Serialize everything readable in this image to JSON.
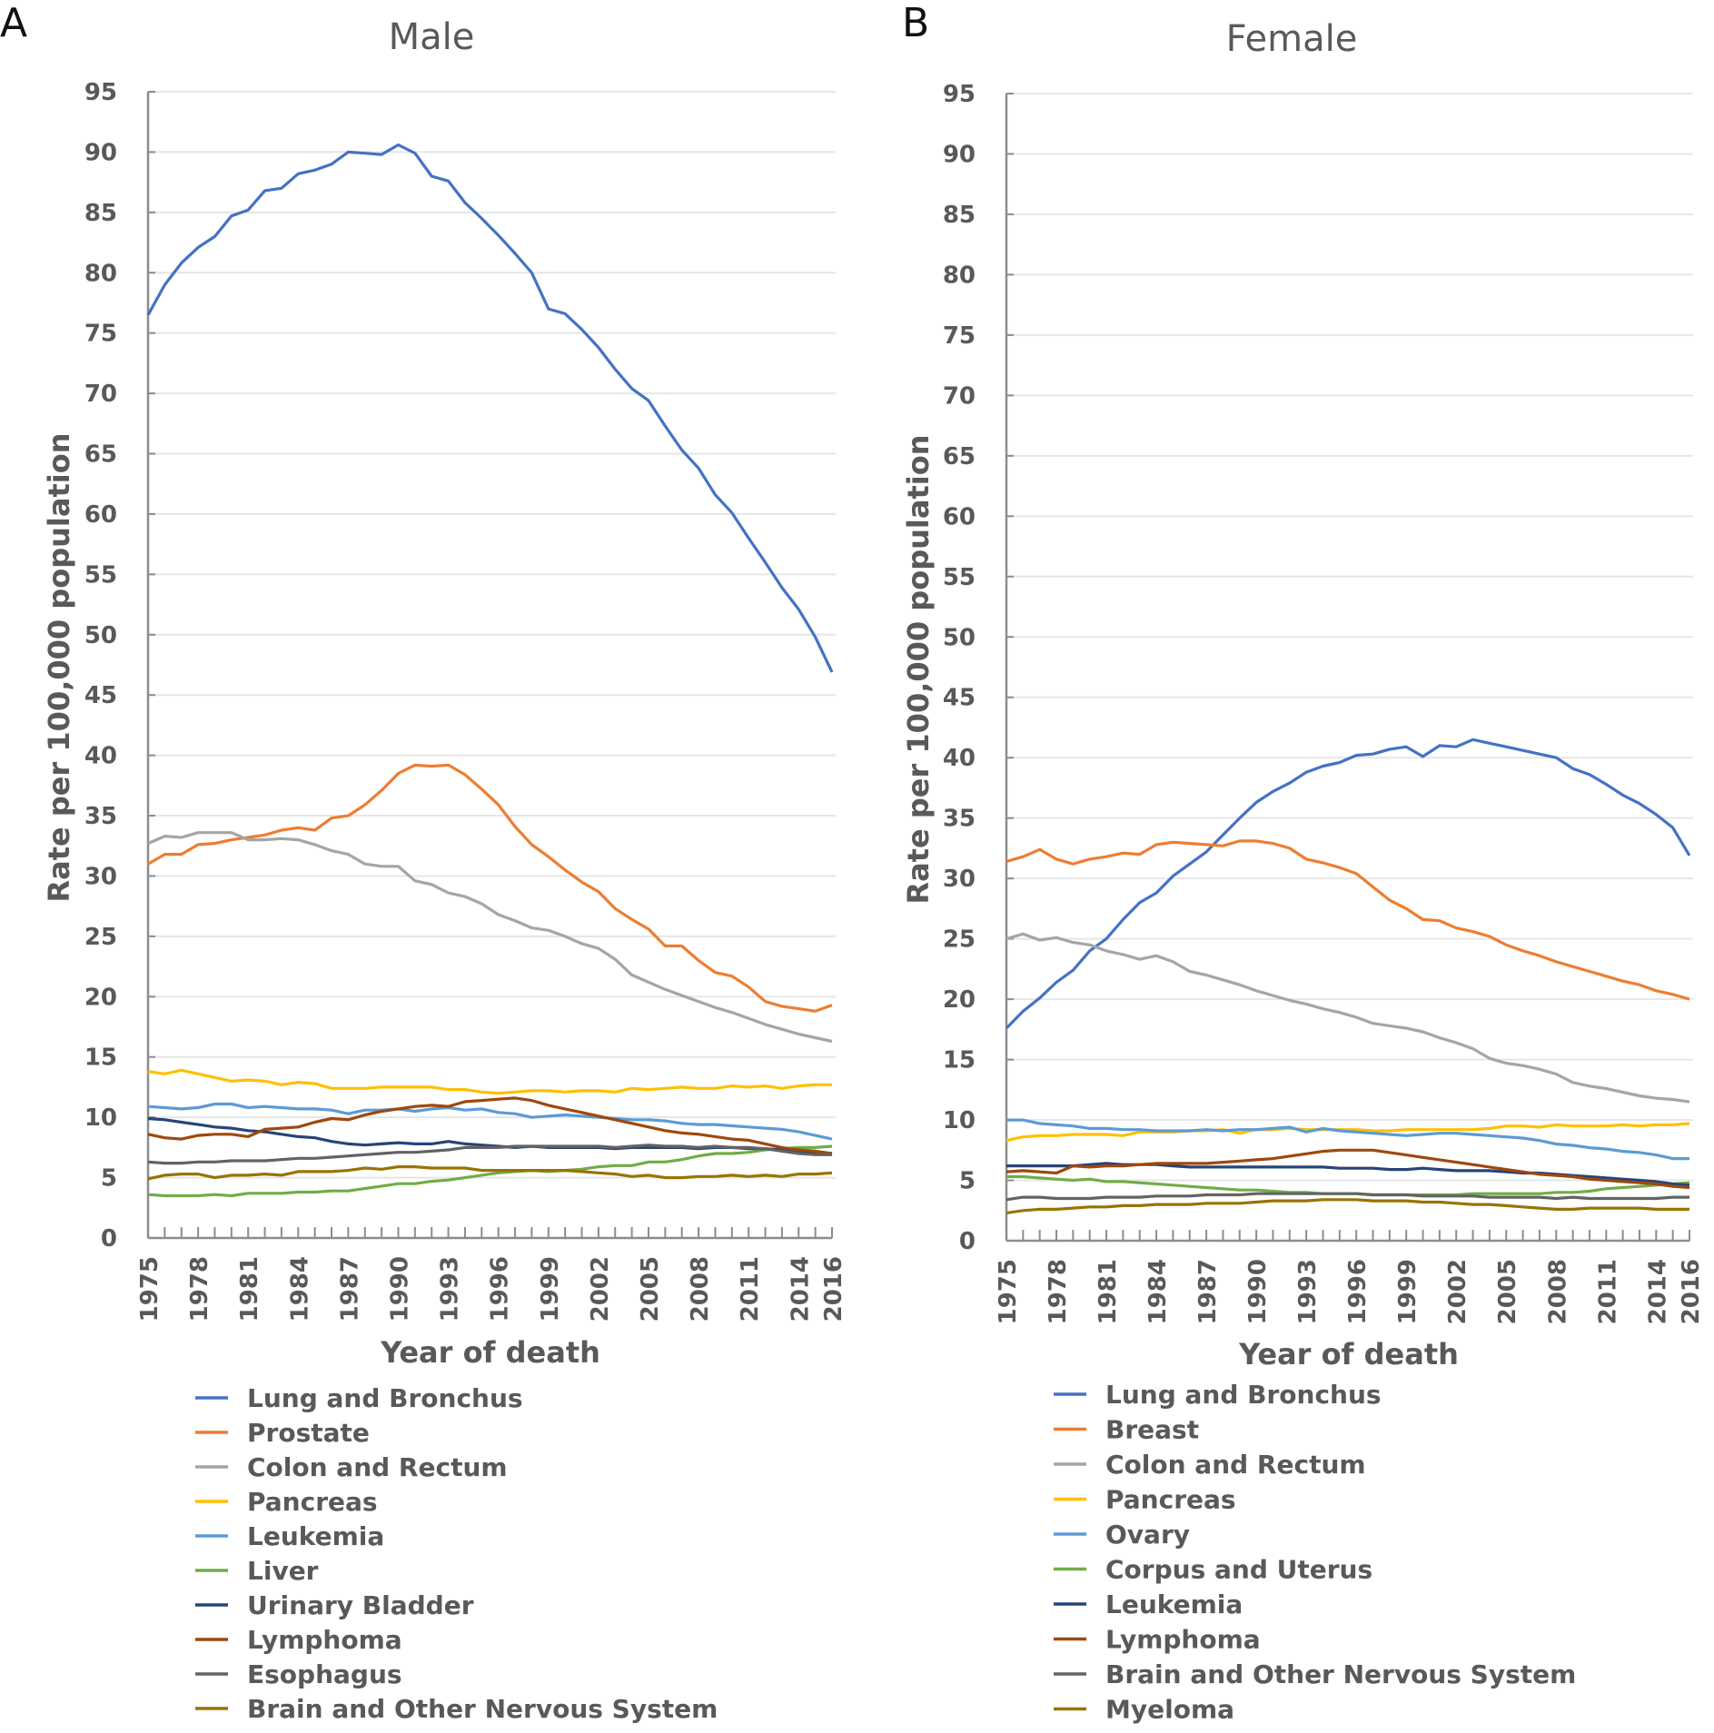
{
  "chart_data": [
    {
      "panel": "A",
      "type": "line",
      "title": "Male",
      "xlabel": "Year of death",
      "ylabel": "Rate per 100,000 population",
      "ylim": [
        0,
        95
      ],
      "yticks": [
        0,
        5,
        10,
        15,
        20,
        25,
        30,
        35,
        40,
        45,
        50,
        55,
        60,
        65,
        70,
        75,
        80,
        85,
        90,
        95
      ],
      "x": [
        1975,
        1976,
        1977,
        1978,
        1979,
        1980,
        1981,
        1982,
        1983,
        1984,
        1985,
        1986,
        1987,
        1988,
        1989,
        1990,
        1991,
        1992,
        1993,
        1994,
        1995,
        1996,
        1997,
        1998,
        1999,
        2000,
        2001,
        2002,
        2003,
        2004,
        2005,
        2006,
        2007,
        2008,
        2009,
        2010,
        2011,
        2012,
        2013,
        2014,
        2015,
        2016
      ],
      "xtick_labels": [
        "1975",
        "1978",
        "1981",
        "1984",
        "1987",
        "1990",
        "1993",
        "1996",
        "1999",
        "2002",
        "2005",
        "2008",
        "2011",
        "2014",
        "2016"
      ],
      "grid": true,
      "legend_position": "bottom",
      "series": [
        {
          "name": "Lung and Bronchus",
          "color": "#4472C4",
          "values": [
            76.5,
            79.0,
            80.8,
            82.1,
            83.0,
            84.7,
            85.2,
            86.8,
            87.0,
            88.2,
            88.5,
            89.0,
            90.0,
            89.9,
            89.8,
            90.6,
            89.9,
            88.0,
            87.6,
            85.8,
            84.5,
            83.1,
            81.6,
            80.0,
            77.0,
            76.6,
            75.3,
            73.8,
            72.0,
            70.4,
            69.4,
            67.3,
            65.3,
            63.8,
            61.6,
            60.1,
            58.0,
            56.0,
            53.9,
            52.1,
            49.8,
            46.9
          ]
        },
        {
          "name": "Prostate",
          "color": "#ED7D31",
          "values": [
            31.0,
            31.8,
            31.8,
            32.6,
            32.7,
            33.0,
            33.2,
            33.4,
            33.8,
            34.0,
            33.8,
            34.8,
            35.0,
            35.9,
            37.1,
            38.5,
            39.2,
            39.1,
            39.2,
            38.4,
            37.2,
            35.9,
            34.1,
            32.6,
            31.6,
            30.5,
            29.5,
            28.7,
            27.3,
            26.4,
            25.6,
            24.2,
            24.2,
            23.0,
            22.0,
            21.7,
            20.8,
            19.6,
            19.2,
            19.0,
            18.8,
            19.3
          ]
        },
        {
          "name": "Colon and Rectum",
          "color": "#A5A5A5",
          "values": [
            32.7,
            33.3,
            33.2,
            33.6,
            33.6,
            33.6,
            33.0,
            33.0,
            33.1,
            33.0,
            32.6,
            32.1,
            31.8,
            31.0,
            30.8,
            30.8,
            29.6,
            29.3,
            28.6,
            28.3,
            27.7,
            26.8,
            26.3,
            25.7,
            25.5,
            25.0,
            24.4,
            24.0,
            23.1,
            21.8,
            21.2,
            20.6,
            20.1,
            19.6,
            19.1,
            18.7,
            18.2,
            17.7,
            17.3,
            16.9,
            16.6,
            16.3
          ]
        },
        {
          "name": "Pancreas",
          "color": "#FFC000",
          "values": [
            13.8,
            13.6,
            13.9,
            13.6,
            13.3,
            13.0,
            13.1,
            13.0,
            12.7,
            12.9,
            12.8,
            12.4,
            12.4,
            12.4,
            12.5,
            12.5,
            12.5,
            12.5,
            12.3,
            12.3,
            12.1,
            12.0,
            12.1,
            12.2,
            12.2,
            12.1,
            12.2,
            12.2,
            12.1,
            12.4,
            12.3,
            12.4,
            12.5,
            12.4,
            12.4,
            12.6,
            12.5,
            12.6,
            12.4,
            12.6,
            12.7,
            12.7
          ]
        },
        {
          "name": "Leukemia",
          "color": "#5B9BD5",
          "values": [
            10.9,
            10.8,
            10.7,
            10.8,
            11.1,
            11.1,
            10.8,
            10.9,
            10.8,
            10.7,
            10.7,
            10.6,
            10.3,
            10.6,
            10.6,
            10.7,
            10.5,
            10.7,
            10.8,
            10.6,
            10.7,
            10.4,
            10.3,
            10.0,
            10.1,
            10.2,
            10.1,
            10.0,
            9.9,
            9.8,
            9.8,
            9.7,
            9.5,
            9.4,
            9.4,
            9.3,
            9.2,
            9.1,
            9.0,
            8.8,
            8.5,
            8.2
          ]
        },
        {
          "name": "Liver",
          "color": "#70AD47",
          "values": [
            3.6,
            3.5,
            3.5,
            3.5,
            3.6,
            3.5,
            3.7,
            3.7,
            3.7,
            3.8,
            3.8,
            3.9,
            3.9,
            4.1,
            4.3,
            4.5,
            4.5,
            4.7,
            4.8,
            5.0,
            5.2,
            5.4,
            5.5,
            5.6,
            5.5,
            5.6,
            5.7,
            5.9,
            6.0,
            6.0,
            6.3,
            6.3,
            6.5,
            6.8,
            7.0,
            7.0,
            7.1,
            7.3,
            7.4,
            7.5,
            7.5,
            7.6
          ]
        },
        {
          "name": "Urinary Bladder",
          "color": "#264478",
          "values": [
            9.9,
            9.8,
            9.6,
            9.4,
            9.2,
            9.1,
            8.9,
            8.8,
            8.6,
            8.4,
            8.3,
            8.0,
            7.8,
            7.7,
            7.8,
            7.9,
            7.8,
            7.8,
            8.0,
            7.8,
            7.7,
            7.6,
            7.5,
            7.6,
            7.5,
            7.5,
            7.5,
            7.5,
            7.4,
            7.5,
            7.5,
            7.5,
            7.5,
            7.4,
            7.5,
            7.5,
            7.4,
            7.4,
            7.3,
            7.2,
            7.1,
            7.0
          ]
        },
        {
          "name": "Lymphoma",
          "color": "#9E480E",
          "values": [
            8.6,
            8.3,
            8.2,
            8.5,
            8.6,
            8.6,
            8.4,
            9.0,
            9.1,
            9.2,
            9.6,
            9.9,
            9.8,
            10.2,
            10.5,
            10.7,
            10.9,
            11.0,
            10.9,
            11.3,
            11.4,
            11.5,
            11.6,
            11.4,
            11.0,
            10.7,
            10.4,
            10.1,
            9.8,
            9.5,
            9.2,
            8.9,
            8.7,
            8.6,
            8.4,
            8.2,
            8.1,
            7.8,
            7.5,
            7.3,
            7.2,
            7.0
          ]
        },
        {
          "name": "Esophagus",
          "color": "#636363",
          "values": [
            6.3,
            6.2,
            6.2,
            6.3,
            6.3,
            6.4,
            6.4,
            6.4,
            6.5,
            6.6,
            6.6,
            6.7,
            6.8,
            6.9,
            7.0,
            7.1,
            7.1,
            7.2,
            7.3,
            7.5,
            7.5,
            7.5,
            7.6,
            7.6,
            7.6,
            7.6,
            7.6,
            7.6,
            7.5,
            7.6,
            7.7,
            7.6,
            7.6,
            7.5,
            7.6,
            7.5,
            7.5,
            7.4,
            7.2,
            7.0,
            6.9,
            6.9
          ]
        },
        {
          "name": "Brain and Other Nervous System",
          "color": "#997300",
          "values": [
            4.9,
            5.2,
            5.3,
            5.3,
            5.0,
            5.2,
            5.2,
            5.3,
            5.2,
            5.5,
            5.5,
            5.5,
            5.6,
            5.8,
            5.7,
            5.9,
            5.9,
            5.8,
            5.8,
            5.8,
            5.6,
            5.6,
            5.6,
            5.6,
            5.6,
            5.6,
            5.5,
            5.4,
            5.3,
            5.1,
            5.2,
            5.0,
            5.0,
            5.1,
            5.1,
            5.2,
            5.1,
            5.2,
            5.1,
            5.3,
            5.3,
            5.4
          ]
        }
      ]
    },
    {
      "panel": "B",
      "type": "line",
      "title": "Female",
      "xlabel": "Year of death",
      "ylabel": "Rate per 100,000 population",
      "ylim": [
        0,
        95
      ],
      "yticks": [
        0,
        5,
        10,
        15,
        20,
        25,
        30,
        35,
        40,
        45,
        50,
        55,
        60,
        65,
        70,
        75,
        80,
        85,
        90,
        95
      ],
      "x": [
        1975,
        1976,
        1977,
        1978,
        1979,
        1980,
        1981,
        1982,
        1983,
        1984,
        1985,
        1986,
        1987,
        1988,
        1989,
        1990,
        1991,
        1992,
        1993,
        1994,
        1995,
        1996,
        1997,
        1998,
        1999,
        2000,
        2001,
        2002,
        2003,
        2004,
        2005,
        2006,
        2007,
        2008,
        2009,
        2010,
        2011,
        2012,
        2013,
        2014,
        2015,
        2016
      ],
      "xtick_labels": [
        "1975",
        "1978",
        "1981",
        "1984",
        "1987",
        "1990",
        "1993",
        "1996",
        "1999",
        "2002",
        "2005",
        "2008",
        "2011",
        "2014",
        "2016"
      ],
      "grid": true,
      "legend_position": "bottom",
      "series": [
        {
          "name": "Lung and Bronchus",
          "color": "#4472C4",
          "values": [
            17.6,
            19.0,
            20.1,
            21.4,
            22.4,
            24.0,
            25.0,
            26.6,
            28.0,
            28.8,
            30.2,
            31.2,
            32.2,
            33.6,
            35.0,
            36.3,
            37.2,
            37.9,
            38.8,
            39.3,
            39.6,
            40.2,
            40.3,
            40.7,
            40.9,
            40.1,
            41.0,
            40.9,
            41.5,
            41.2,
            40.9,
            40.6,
            40.3,
            40.0,
            39.1,
            38.6,
            37.8,
            36.9,
            36.2,
            35.3,
            34.2,
            31.9
          ]
        },
        {
          "name": "Breast",
          "color": "#ED7D31",
          "values": [
            31.4,
            31.8,
            32.4,
            31.6,
            31.2,
            31.6,
            31.8,
            32.1,
            32.0,
            32.8,
            33.0,
            32.9,
            32.8,
            32.7,
            33.1,
            33.1,
            32.9,
            32.5,
            31.6,
            31.3,
            30.9,
            30.4,
            29.3,
            28.2,
            27.5,
            26.6,
            26.5,
            25.9,
            25.6,
            25.2,
            24.5,
            24.0,
            23.6,
            23.1,
            22.7,
            22.3,
            21.9,
            21.5,
            21.2,
            20.7,
            20.4,
            20.0
          ]
        },
        {
          "name": "Colon and Rectum",
          "color": "#A5A5A5",
          "values": [
            25.0,
            25.4,
            24.9,
            25.1,
            24.7,
            24.5,
            24.0,
            23.7,
            23.3,
            23.6,
            23.1,
            22.3,
            22.0,
            21.6,
            21.2,
            20.7,
            20.3,
            19.9,
            19.6,
            19.2,
            18.9,
            18.5,
            18.0,
            17.8,
            17.6,
            17.3,
            16.8,
            16.4,
            15.9,
            15.1,
            14.7,
            14.5,
            14.2,
            13.8,
            13.1,
            12.8,
            12.6,
            12.3,
            12.0,
            11.8,
            11.7,
            11.5
          ]
        },
        {
          "name": "Pancreas",
          "color": "#FFC000",
          "values": [
            8.3,
            8.6,
            8.7,
            8.7,
            8.8,
            8.8,
            8.8,
            8.7,
            9.0,
            9.0,
            9.0,
            9.1,
            9.1,
            9.2,
            8.9,
            9.2,
            9.2,
            9.3,
            9.2,
            9.2,
            9.2,
            9.2,
            9.1,
            9.1,
            9.2,
            9.2,
            9.2,
            9.2,
            9.2,
            9.3,
            9.5,
            9.5,
            9.4,
            9.6,
            9.5,
            9.5,
            9.5,
            9.6,
            9.5,
            9.6,
            9.6,
            9.7
          ]
        },
        {
          "name": "Ovary",
          "color": "#5B9BD5",
          "values": [
            10.0,
            10.0,
            9.7,
            9.6,
            9.5,
            9.3,
            9.3,
            9.2,
            9.2,
            9.1,
            9.1,
            9.1,
            9.2,
            9.1,
            9.2,
            9.2,
            9.3,
            9.4,
            9.0,
            9.3,
            9.1,
            9.0,
            8.9,
            8.8,
            8.7,
            8.8,
            8.9,
            8.9,
            8.8,
            8.7,
            8.6,
            8.5,
            8.3,
            8.0,
            7.9,
            7.7,
            7.6,
            7.4,
            7.3,
            7.1,
            6.8,
            6.8
          ]
        },
        {
          "name": "Corpus and Uterus",
          "color": "#70AD47",
          "values": [
            5.3,
            5.3,
            5.2,
            5.1,
            5.0,
            5.1,
            4.9,
            4.9,
            4.8,
            4.7,
            4.6,
            4.5,
            4.4,
            4.3,
            4.2,
            4.2,
            4.1,
            4.0,
            4.0,
            3.9,
            3.9,
            3.9,
            3.8,
            3.8,
            3.8,
            3.8,
            3.8,
            3.8,
            3.9,
            3.9,
            3.9,
            3.9,
            3.9,
            4.0,
            4.0,
            4.1,
            4.3,
            4.4,
            4.5,
            4.6,
            4.7,
            4.8
          ]
        },
        {
          "name": "Leukemia",
          "color": "#264478",
          "values": [
            6.2,
            6.2,
            6.2,
            6.2,
            6.2,
            6.3,
            6.4,
            6.3,
            6.3,
            6.3,
            6.2,
            6.1,
            6.1,
            6.1,
            6.1,
            6.1,
            6.1,
            6.1,
            6.1,
            6.1,
            6.0,
            6.0,
            6.0,
            5.9,
            5.9,
            6.0,
            5.9,
            5.8,
            5.8,
            5.8,
            5.7,
            5.6,
            5.6,
            5.5,
            5.4,
            5.3,
            5.2,
            5.1,
            5.0,
            4.9,
            4.7,
            4.6
          ]
        },
        {
          "name": "Lymphoma",
          "color": "#9E480E",
          "values": [
            5.7,
            5.8,
            5.7,
            5.6,
            6.2,
            6.1,
            6.2,
            6.2,
            6.3,
            6.4,
            6.4,
            6.4,
            6.4,
            6.5,
            6.6,
            6.7,
            6.8,
            7.0,
            7.2,
            7.4,
            7.5,
            7.5,
            7.5,
            7.3,
            7.1,
            6.9,
            6.7,
            6.5,
            6.3,
            6.1,
            5.9,
            5.7,
            5.5,
            5.4,
            5.3,
            5.1,
            5.0,
            4.9,
            4.8,
            4.7,
            4.5,
            4.4
          ]
        },
        {
          "name": "Brain and Other Nervous System",
          "color": "#636363",
          "values": [
            3.4,
            3.6,
            3.6,
            3.5,
            3.5,
            3.5,
            3.6,
            3.6,
            3.6,
            3.7,
            3.7,
            3.7,
            3.8,
            3.8,
            3.8,
            3.9,
            3.9,
            3.9,
            3.9,
            3.9,
            3.9,
            3.9,
            3.8,
            3.8,
            3.8,
            3.7,
            3.7,
            3.7,
            3.7,
            3.6,
            3.6,
            3.6,
            3.6,
            3.5,
            3.6,
            3.5,
            3.5,
            3.5,
            3.5,
            3.5,
            3.6,
            3.6
          ]
        },
        {
          "name": "Myeloma",
          "color": "#997300",
          "values": [
            2.3,
            2.5,
            2.6,
            2.6,
            2.7,
            2.8,
            2.8,
            2.9,
            2.9,
            3.0,
            3.0,
            3.0,
            3.1,
            3.1,
            3.1,
            3.2,
            3.3,
            3.3,
            3.3,
            3.4,
            3.4,
            3.4,
            3.3,
            3.3,
            3.3,
            3.2,
            3.2,
            3.1,
            3.0,
            3.0,
            2.9,
            2.8,
            2.7,
            2.6,
            2.6,
            2.7,
            2.7,
            2.7,
            2.7,
            2.6,
            2.6,
            2.6
          ]
        }
      ]
    }
  ]
}
